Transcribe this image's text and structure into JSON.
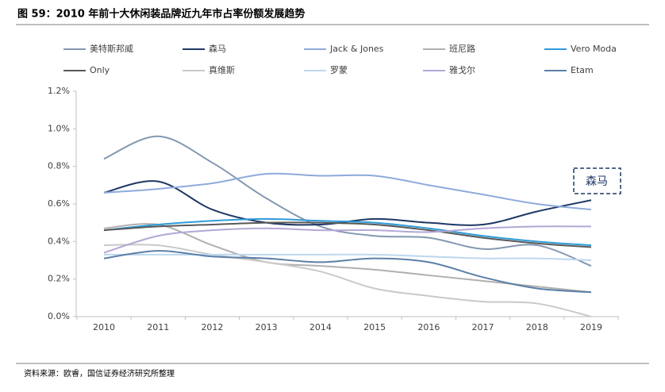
{
  "chart_data": {
    "type": "line",
    "title": "图 59：2010 年前十大休闲装品牌近九年市占率份额发展趋势",
    "source": "资料来源：欧睿，国信证券经济研究所整理",
    "annotation": "森马",
    "categories": [
      "2010",
      "2011",
      "2012",
      "2013",
      "2014",
      "2015",
      "2016",
      "2017",
      "2018",
      "2019"
    ],
    "ylim": [
      0,
      1.2
    ],
    "yticks": [
      {
        "value": 0,
        "label": "0.0%"
      },
      {
        "value": 0.2,
        "label": "0.2%"
      },
      {
        "value": 0.4,
        "label": "0.4%"
      },
      {
        "value": 0.6,
        "label": "0.6%"
      },
      {
        "value": 0.8,
        "label": "0.8%"
      },
      {
        "value": 1.0,
        "label": "1.0%"
      },
      {
        "value": 1.2,
        "label": "1.2%"
      }
    ],
    "series": [
      {
        "name": "美特斯邦威",
        "color": "#8497b0",
        "values": [
          0.84,
          0.96,
          0.82,
          0.63,
          0.48,
          0.43,
          0.42,
          0.36,
          0.38,
          0.27
        ]
      },
      {
        "name": "森马",
        "color": "#1f3864",
        "values": [
          0.66,
          0.72,
          0.57,
          0.5,
          0.49,
          0.52,
          0.5,
          0.49,
          0.56,
          0.62
        ]
      },
      {
        "name": "Jack & Jones",
        "color": "#8eaadb",
        "values": [
          0.66,
          0.68,
          0.71,
          0.76,
          0.75,
          0.75,
          0.7,
          0.65,
          0.6,
          0.57
        ]
      },
      {
        "name": "班尼路",
        "color": "#b0b0b0",
        "values": [
          0.47,
          0.49,
          0.38,
          0.29,
          0.27,
          0.25,
          0.22,
          0.19,
          0.16,
          0.13
        ]
      },
      {
        "name": "Vero Moda",
        "color": "#2e9bd8",
        "values": [
          0.46,
          0.49,
          0.51,
          0.52,
          0.51,
          0.5,
          0.47,
          0.43,
          0.4,
          0.38
        ]
      },
      {
        "name": "Only",
        "color": "#595959",
        "values": [
          0.46,
          0.48,
          0.49,
          0.5,
          0.5,
          0.49,
          0.46,
          0.42,
          0.39,
          0.37
        ]
      },
      {
        "name": "真维斯",
        "color": "#c9c9c9",
        "values": [
          0.38,
          0.38,
          0.33,
          0.29,
          0.24,
          0.15,
          0.11,
          0.08,
          0.07,
          0.0
        ]
      },
      {
        "name": "罗蒙",
        "color": "#bdd7ee",
        "values": [
          0.33,
          0.33,
          0.33,
          0.33,
          0.33,
          0.33,
          0.32,
          0.31,
          0.31,
          0.3
        ]
      },
      {
        "name": "雅戈尔",
        "color": "#b4a7d6",
        "values": [
          0.34,
          0.43,
          0.46,
          0.47,
          0.46,
          0.46,
          0.45,
          0.47,
          0.48,
          0.48
        ]
      },
      {
        "name": "Etam",
        "color": "#5b7fa8",
        "values": [
          0.31,
          0.35,
          0.32,
          0.31,
          0.29,
          0.31,
          0.29,
          0.21,
          0.15,
          0.13
        ]
      }
    ]
  }
}
